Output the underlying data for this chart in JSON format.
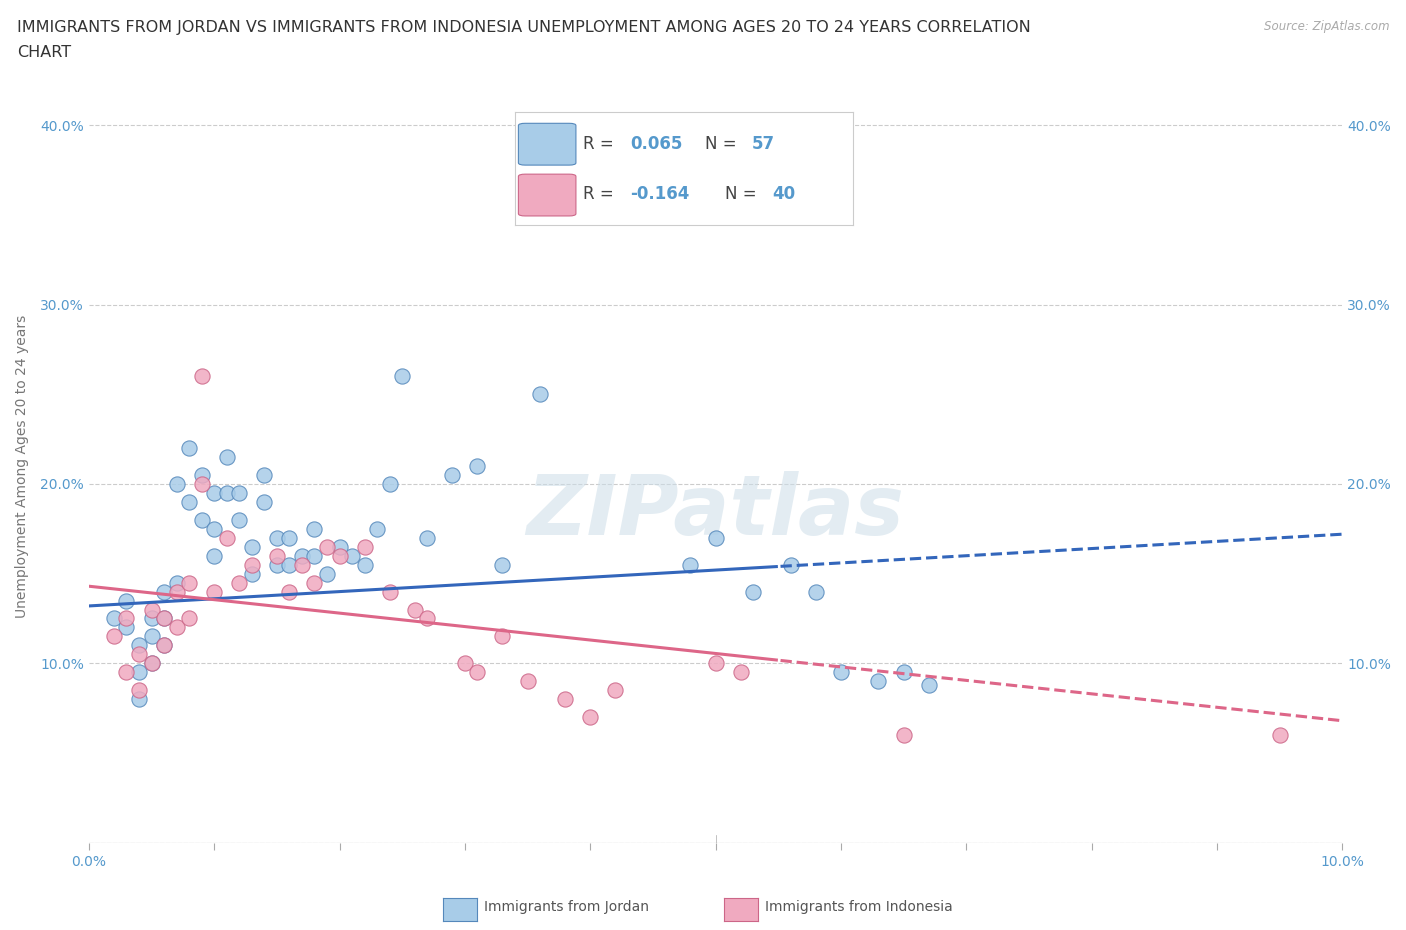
{
  "title_line1": "IMMIGRANTS FROM JORDAN VS IMMIGRANTS FROM INDONESIA UNEMPLOYMENT AMONG AGES 20 TO 24 YEARS CORRELATION",
  "title_line2": "CHART",
  "source": "Source: ZipAtlas.com",
  "ylabel": "Unemployment Among Ages 20 to 24 years",
  "xlim": [
    0.0,
    0.1
  ],
  "ylim": [
    0.0,
    0.42
  ],
  "xtick_positions": [
    0.0,
    0.01,
    0.02,
    0.03,
    0.04,
    0.05,
    0.06,
    0.07,
    0.08,
    0.09,
    0.1
  ],
  "xtick_labels": [
    "0.0%",
    "",
    "",
    "",
    "",
    "",
    "",
    "",
    "",
    "",
    "10.0%"
  ],
  "ytick_positions": [
    0.0,
    0.1,
    0.2,
    0.3,
    0.4
  ],
  "ytick_labels": [
    "",
    "10.0%",
    "20.0%",
    "30.0%",
    "40.0%"
  ],
  "jordan_color": "#a8cce8",
  "jordan_edge_color": "#5588bb",
  "indonesia_color": "#f0aac0",
  "indonesia_edge_color": "#cc6688",
  "jordan_R": 0.065,
  "jordan_N": 57,
  "indonesia_R": -0.164,
  "indonesia_N": 40,
  "jordan_x": [
    0.002,
    0.003,
    0.003,
    0.004,
    0.004,
    0.004,
    0.005,
    0.005,
    0.005,
    0.006,
    0.006,
    0.006,
    0.007,
    0.007,
    0.008,
    0.008,
    0.009,
    0.009,
    0.01,
    0.01,
    0.01,
    0.011,
    0.011,
    0.012,
    0.012,
    0.013,
    0.013,
    0.014,
    0.014,
    0.015,
    0.015,
    0.016,
    0.016,
    0.017,
    0.018,
    0.018,
    0.019,
    0.02,
    0.021,
    0.022,
    0.023,
    0.024,
    0.025,
    0.027,
    0.029,
    0.031,
    0.033,
    0.036,
    0.048,
    0.05,
    0.053,
    0.056,
    0.058,
    0.06,
    0.063,
    0.065,
    0.067
  ],
  "jordan_y": [
    0.125,
    0.12,
    0.135,
    0.11,
    0.095,
    0.08,
    0.125,
    0.115,
    0.1,
    0.14,
    0.125,
    0.11,
    0.145,
    0.2,
    0.22,
    0.19,
    0.205,
    0.18,
    0.195,
    0.175,
    0.16,
    0.215,
    0.195,
    0.195,
    0.18,
    0.165,
    0.15,
    0.205,
    0.19,
    0.17,
    0.155,
    0.17,
    0.155,
    0.16,
    0.175,
    0.16,
    0.15,
    0.165,
    0.16,
    0.155,
    0.175,
    0.2,
    0.26,
    0.17,
    0.205,
    0.21,
    0.155,
    0.25,
    0.155,
    0.17,
    0.14,
    0.155,
    0.14,
    0.095,
    0.09,
    0.095,
    0.088
  ],
  "indonesia_x": [
    0.002,
    0.003,
    0.003,
    0.004,
    0.004,
    0.005,
    0.005,
    0.006,
    0.006,
    0.007,
    0.007,
    0.008,
    0.008,
    0.009,
    0.009,
    0.01,
    0.011,
    0.012,
    0.013,
    0.015,
    0.016,
    0.017,
    0.018,
    0.019,
    0.02,
    0.022,
    0.024,
    0.026,
    0.027,
    0.03,
    0.031,
    0.033,
    0.035,
    0.038,
    0.04,
    0.042,
    0.05,
    0.052,
    0.065,
    0.095
  ],
  "indonesia_y": [
    0.115,
    0.095,
    0.125,
    0.105,
    0.085,
    0.13,
    0.1,
    0.125,
    0.11,
    0.14,
    0.12,
    0.145,
    0.125,
    0.26,
    0.2,
    0.14,
    0.17,
    0.145,
    0.155,
    0.16,
    0.14,
    0.155,
    0.145,
    0.165,
    0.16,
    0.165,
    0.14,
    0.13,
    0.125,
    0.1,
    0.095,
    0.115,
    0.09,
    0.08,
    0.07,
    0.085,
    0.1,
    0.095,
    0.06,
    0.06
  ],
  "trend_dash_start": 0.055,
  "watermark_text": "ZIPatlas",
  "watermark_color": "#ccdde8",
  "grid_color": "#cccccc",
  "bg_color": "#ffffff",
  "tick_color": "#5599cc",
  "title_fontsize": 11.5,
  "label_fontsize": 10,
  "tick_fontsize": 10,
  "scatter_size": 120,
  "trend_jordan_color": "#3366bb",
  "trend_indonesia_color": "#dd6688",
  "trend_linewidth": 2.2,
  "jordan_trend_intercept": 0.132,
  "jordan_trend_slope": 0.4,
  "indonesia_trend_intercept": 0.143,
  "indonesia_trend_slope": -0.75
}
